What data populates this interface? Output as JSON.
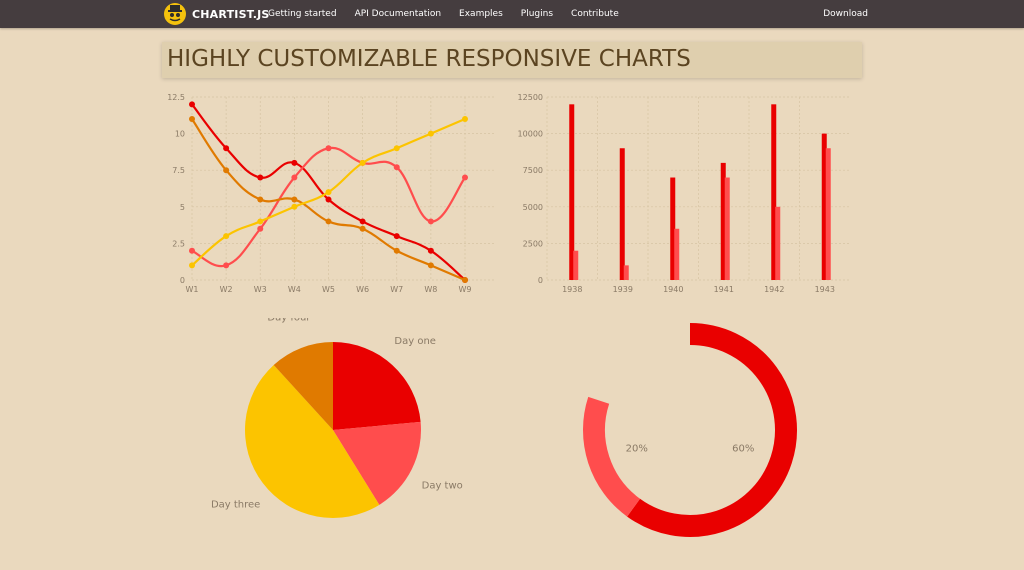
{
  "nav": {
    "brand": "CHARTIST.JS",
    "links": [
      "Getting started",
      "API Documentation",
      "Examples",
      "Plugins",
      "Contribute"
    ],
    "download": "Download"
  },
  "hero": {
    "title": "HIGHLY CUSTOMIZABLE RESPONSIVE CHARTS"
  },
  "colors": {
    "navbar": "#453d3f",
    "page_bg": "#ead9be",
    "series_a": "#e90000",
    "series_b": "#ff4d4d",
    "series_c": "#e07a00",
    "series_d": "#fcc400"
  },
  "chart_data": [
    {
      "type": "line",
      "x": [
        "W1",
        "W2",
        "W3",
        "W4",
        "W5",
        "W6",
        "W7",
        "W8",
        "W9"
      ],
      "y_ticks": [
        "0",
        "2.5",
        "5",
        "7.5",
        "10",
        "12.5"
      ],
      "ylim": [
        0,
        12.5
      ],
      "grid": true,
      "series": [
        {
          "color": "#e90000",
          "values": [
            12,
            9,
            7,
            8,
            5.5,
            4,
            3,
            2,
            0
          ]
        },
        {
          "color": "#ff4d4d",
          "values": [
            2,
            1,
            3.5,
            7,
            9,
            8,
            7.7,
            4,
            7
          ]
        },
        {
          "color": "#e07a00",
          "values": [
            11,
            7.5,
            5.5,
            5.5,
            4,
            3.5,
            2,
            1,
            0
          ]
        },
        {
          "color": "#fcc400",
          "values": [
            1,
            3,
            4,
            5,
            6,
            8,
            9,
            10,
            11
          ]
        }
      ]
    },
    {
      "type": "bar",
      "categories": [
        "1938",
        "1939",
        "1940",
        "1941",
        "1942",
        "1943"
      ],
      "y_ticks": [
        "0",
        "2500",
        "5000",
        "7500",
        "10000",
        "12500"
      ],
      "ylim": [
        0,
        12500
      ],
      "grid": true,
      "series": [
        {
          "color": "#e90000",
          "values": [
            12000,
            9000,
            7000,
            8000,
            12000,
            10000
          ]
        },
        {
          "color": "#ff4d4d",
          "values": [
            2000,
            1000,
            3500,
            7000,
            5000,
            9000
          ]
        }
      ]
    },
    {
      "type": "pie",
      "labels": [
        "Day one",
        "Day two",
        "Day three",
        "Day four"
      ],
      "values": [
        20,
        15,
        40,
        10
      ],
      "colors": [
        "#e90000",
        "#ff4d4d",
        "#fcc400",
        "#e07a00"
      ]
    },
    {
      "type": "pie",
      "donut": true,
      "labels": [
        "60%",
        "20%"
      ],
      "values": [
        60,
        20
      ],
      "total": 100,
      "colors": [
        "#e90000",
        "#ff4d4d"
      ]
    }
  ]
}
